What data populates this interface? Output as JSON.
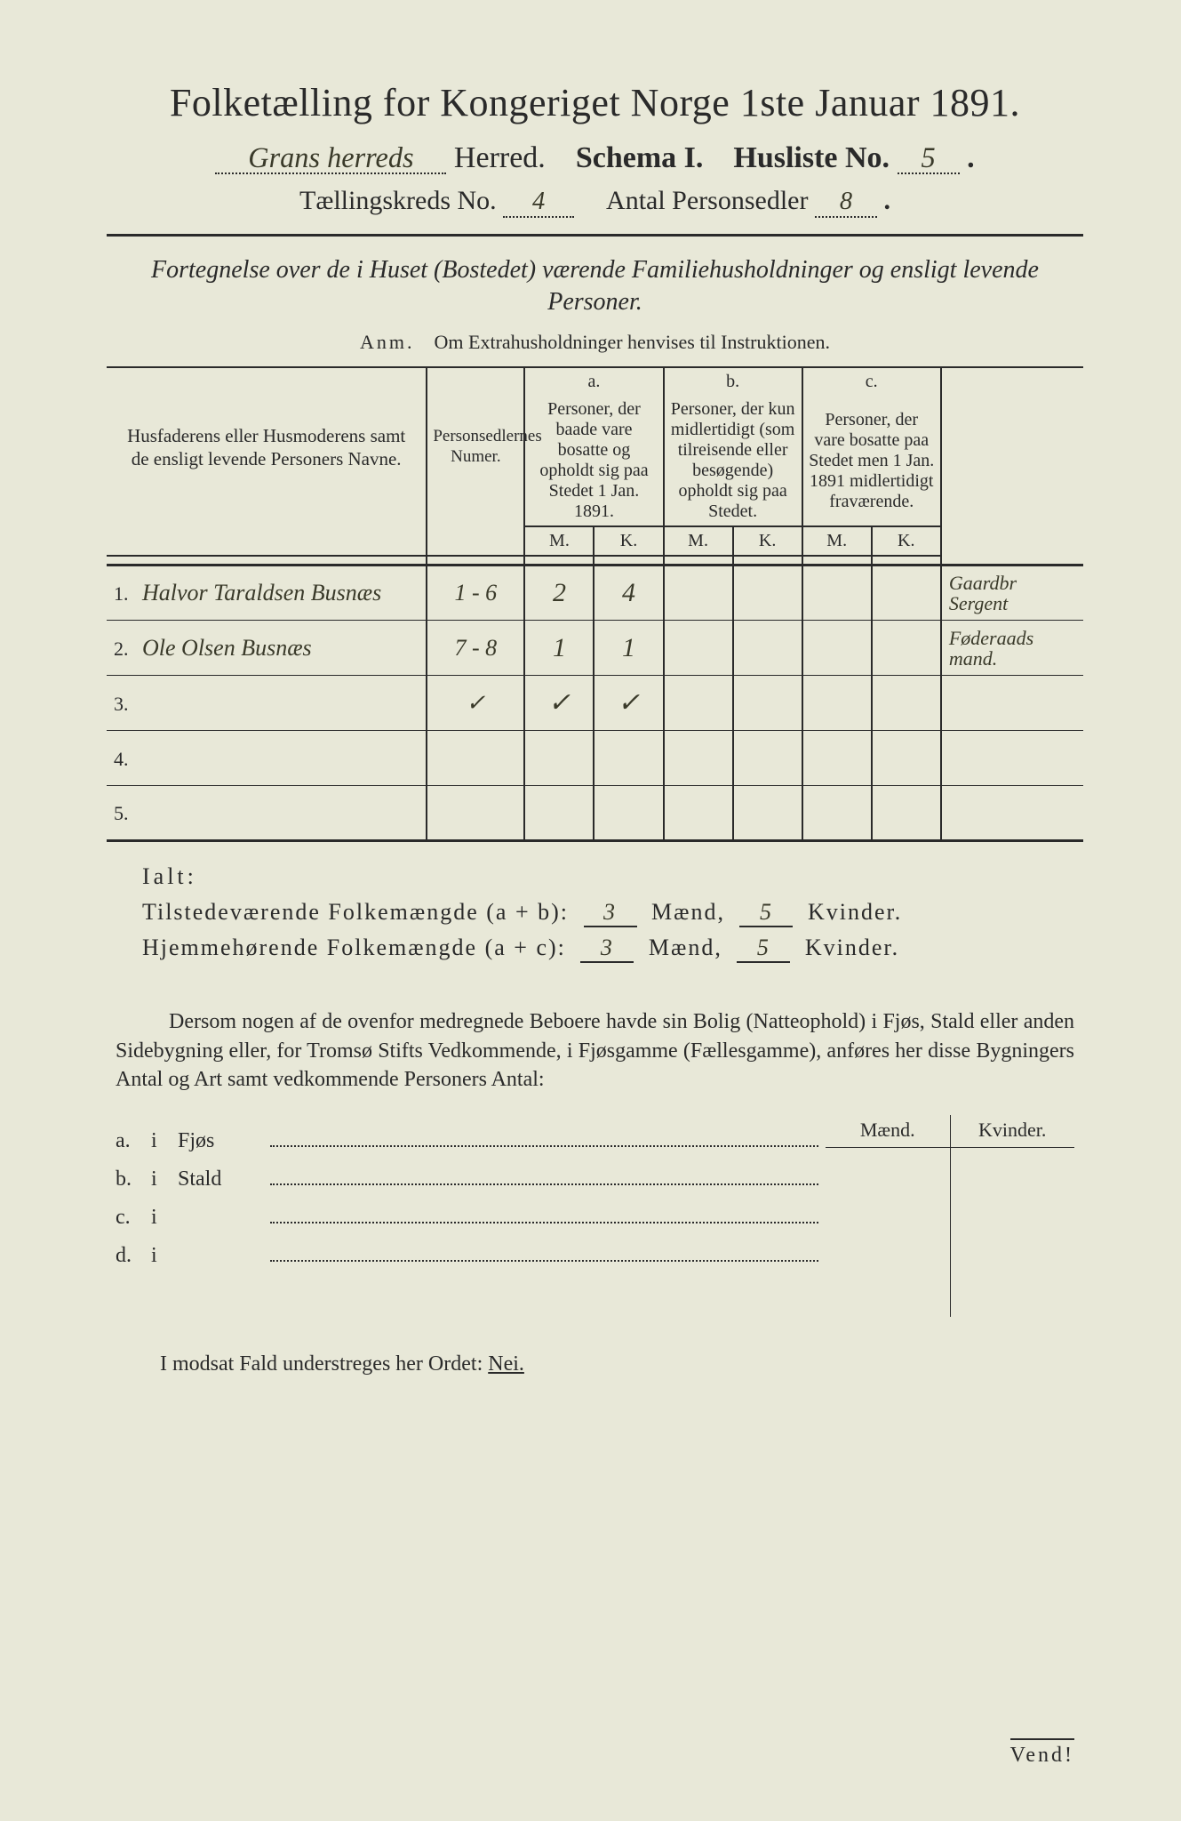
{
  "background_color": "#e8e8d8",
  "text_color": "#2a2a2a",
  "handwriting_color": "#3a3a2a",
  "title": "Folketælling for Kongeriget Norge 1ste Januar 1891.",
  "line2": {
    "herred_hw": "Grans herreds",
    "herred_label": "Herred.",
    "schema_label": "Schema I.",
    "husliste_label": "Husliste No.",
    "husliste_no": "5"
  },
  "line3": {
    "kreds_label": "Tællingskreds No.",
    "kreds_no": "4",
    "antal_label": "Antal Personsedler",
    "antal_no": "8"
  },
  "subtitle": "Fortegnelse over de i Huset (Bostedet) værende Familiehusholdninger og ensligt levende Personer.",
  "anm_label": "Anm.",
  "anm_text": "Om Extrahusholdninger henvises til Instruktionen.",
  "table": {
    "col_name_header": "Husfaderens eller Husmoderens samt de ensligt levende Personers Navne.",
    "col_num_header": "Personsedlernes Numer.",
    "group_a": "a.",
    "group_b": "b.",
    "group_c": "c.",
    "desc_a": "Personer, der baade vare bosatte og opholdt sig paa Stedet 1 Jan. 1891.",
    "desc_b": "Personer, der kun midlertidigt (som tilreisende eller besøgende) opholdt sig paa Stedet.",
    "desc_c": "Personer, der vare bosatte paa Stedet men 1 Jan. 1891 midlertidigt fraværende.",
    "M": "M.",
    "K": "K.",
    "rows": [
      {
        "n": "1.",
        "name": "Halvor Taraldsen Busnæs",
        "num": "1 - 6",
        "aM": "2",
        "aK": "4",
        "bM": "",
        "bK": "",
        "cM": "",
        "cK": "",
        "note": "Gaardbr Sergent"
      },
      {
        "n": "2.",
        "name": "Ole Olsen Busnæs",
        "num": "7 - 8",
        "aM": "1",
        "aK": "1",
        "bM": "",
        "bK": "",
        "cM": "",
        "cK": "",
        "note": "Føderaads mand."
      },
      {
        "n": "3.",
        "name": "",
        "num": "✓",
        "aM": "✓",
        "aK": "✓",
        "bM": "",
        "bK": "",
        "cM": "",
        "cK": "",
        "note": ""
      },
      {
        "n": "4.",
        "name": "",
        "num": "",
        "aM": "",
        "aK": "",
        "bM": "",
        "bK": "",
        "cM": "",
        "cK": "",
        "note": ""
      },
      {
        "n": "5.",
        "name": "",
        "num": "",
        "aM": "",
        "aK": "",
        "bM": "",
        "bK": "",
        "cM": "",
        "cK": "",
        "note": ""
      }
    ]
  },
  "totals": {
    "ialt": "Ialt:",
    "line1_label": "Tilstedeværende Folkemængde (a + b):",
    "line2_label": "Hjemmehørende Folkemængde (a + c):",
    "maend": "Mænd,",
    "kvinder": "Kvinder.",
    "l1_m": "3",
    "l1_k": "5",
    "l2_m": "3",
    "l2_k": "5"
  },
  "paragraph": "Dersom nogen af de ovenfor medregnede Beboere havde sin Bolig (Natteophold) i Fjøs, Stald eller anden Sidebygning eller, for Tromsø Stifts Vedkommende, i Fjøsgamme (Fællesgamme), anføres her disse Bygningers Antal og Art samt vedkommende Personers Antal:",
  "bottom": {
    "maend": "Mænd.",
    "kvinder": "Kvinder.",
    "rows": [
      {
        "tag": "a.",
        "i": "i",
        "label": "Fjøs"
      },
      {
        "tag": "b.",
        "i": "i",
        "label": "Stald"
      },
      {
        "tag": "c.",
        "i": "i",
        "label": ""
      },
      {
        "tag": "d.",
        "i": "i",
        "label": ""
      }
    ]
  },
  "nei_line_prefix": "I modsat Fald understreges her Ordet:",
  "nei": "Nei.",
  "vend": "Vend!"
}
